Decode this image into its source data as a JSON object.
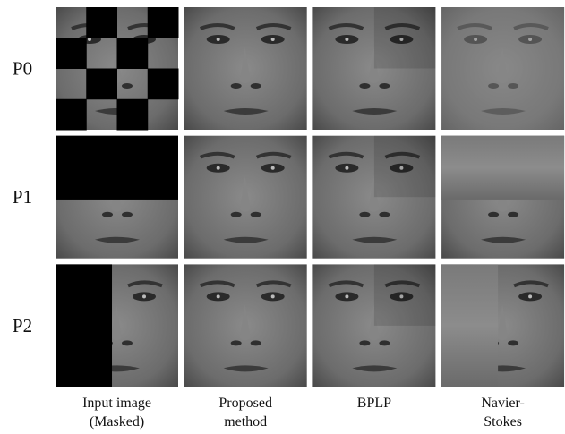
{
  "rows": [
    {
      "label": "P0"
    },
    {
      "label": "P1"
    },
    {
      "label": "P2"
    }
  ],
  "columns": [
    {
      "lines": [
        "Input image",
        "(Masked)"
      ]
    },
    {
      "lines": [
        "Proposed",
        "method"
      ]
    },
    {
      "lines": [
        "BPLP"
      ]
    },
    {
      "lines": [
        "Navier-",
        "Stokes"
      ]
    }
  ]
}
